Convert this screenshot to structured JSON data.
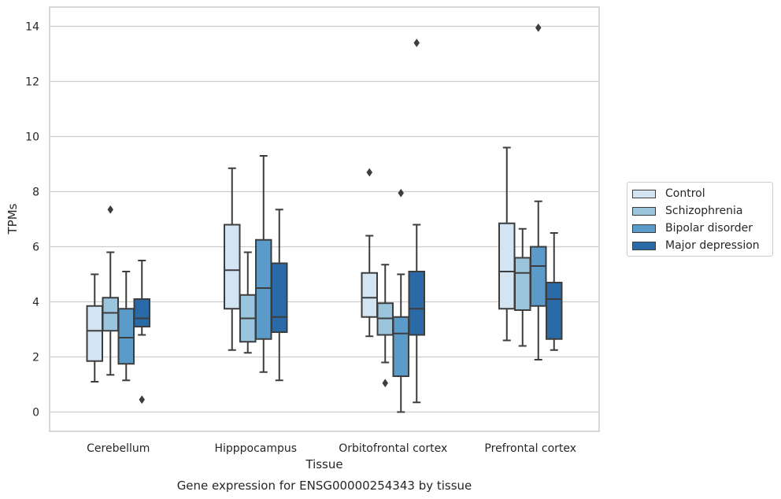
{
  "chart_data": {
    "type": "box",
    "title": "",
    "caption": "Gene expression for ENSG00000254343 by tissue",
    "xlabel": "Tissue",
    "ylabel": "TPMs",
    "ylim": [
      -0.7,
      14.7
    ],
    "yticks": [
      0,
      2,
      4,
      6,
      8,
      10,
      12,
      14
    ],
    "grid": "horizontal",
    "legend_position": "right",
    "categories": [
      "Cerebellum",
      "Hipppocampus",
      "Orbitofrontal cortex",
      "Prefrontal cortex"
    ],
    "series": [
      {
        "name": "Control",
        "color": "#d3e4f3",
        "boxes": [
          {
            "whislo": 1.1,
            "q1": 1.85,
            "med": 2.95,
            "q3": 3.85,
            "whishi": 5.0,
            "fliers": []
          },
          {
            "whislo": 2.25,
            "q1": 3.75,
            "med": 5.15,
            "q3": 6.8,
            "whishi": 8.85,
            "fliers": []
          },
          {
            "whislo": 2.75,
            "q1": 3.45,
            "med": 4.15,
            "q3": 5.05,
            "whishi": 6.4,
            "fliers": [
              8.7
            ]
          },
          {
            "whislo": 2.6,
            "q1": 3.75,
            "med": 5.1,
            "q3": 6.85,
            "whishi": 9.6,
            "fliers": []
          }
        ]
      },
      {
        "name": "Schizophrenia",
        "color": "#9bc4dd",
        "boxes": [
          {
            "whislo": 1.35,
            "q1": 2.95,
            "med": 3.6,
            "q3": 4.15,
            "whishi": 5.8,
            "fliers": [
              7.35
            ]
          },
          {
            "whislo": 2.15,
            "q1": 2.55,
            "med": 3.4,
            "q3": 4.25,
            "whishi": 5.8,
            "fliers": []
          },
          {
            "whislo": 1.8,
            "q1": 2.8,
            "med": 3.4,
            "q3": 3.95,
            "whishi": 5.35,
            "fliers": [
              1.05
            ]
          },
          {
            "whislo": 2.4,
            "q1": 3.7,
            "med": 5.05,
            "q3": 5.6,
            "whishi": 6.65,
            "fliers": []
          }
        ]
      },
      {
        "name": "Bipolar disorder",
        "color": "#5a9bc9",
        "boxes": [
          {
            "whislo": 1.15,
            "q1": 1.75,
            "med": 2.7,
            "q3": 3.75,
            "whishi": 5.1,
            "fliers": []
          },
          {
            "whislo": 1.45,
            "q1": 2.65,
            "med": 4.5,
            "q3": 6.25,
            "whishi": 9.3,
            "fliers": []
          },
          {
            "whislo": 0.0,
            "q1": 1.3,
            "med": 2.85,
            "q3": 3.45,
            "whishi": 5.0,
            "fliers": [
              7.95
            ]
          },
          {
            "whislo": 1.9,
            "q1": 3.85,
            "med": 5.3,
            "q3": 6.0,
            "whishi": 7.65,
            "fliers": [
              13.95
            ]
          }
        ]
      },
      {
        "name": "Major depression",
        "color": "#2a6aa7",
        "boxes": [
          {
            "whislo": 2.8,
            "q1": 3.1,
            "med": 3.4,
            "q3": 4.1,
            "whishi": 5.5,
            "fliers": [
              0.45
            ]
          },
          {
            "whislo": 1.15,
            "q1": 2.9,
            "med": 3.45,
            "q3": 5.4,
            "whishi": 7.35,
            "fliers": []
          },
          {
            "whislo": 0.35,
            "q1": 2.8,
            "med": 3.75,
            "q3": 5.1,
            "whishi": 6.8,
            "fliers": [
              13.4
            ]
          },
          {
            "whislo": 2.25,
            "q1": 2.65,
            "med": 4.1,
            "q3": 4.7,
            "whishi": 6.5,
            "fliers": []
          }
        ]
      }
    ]
  }
}
